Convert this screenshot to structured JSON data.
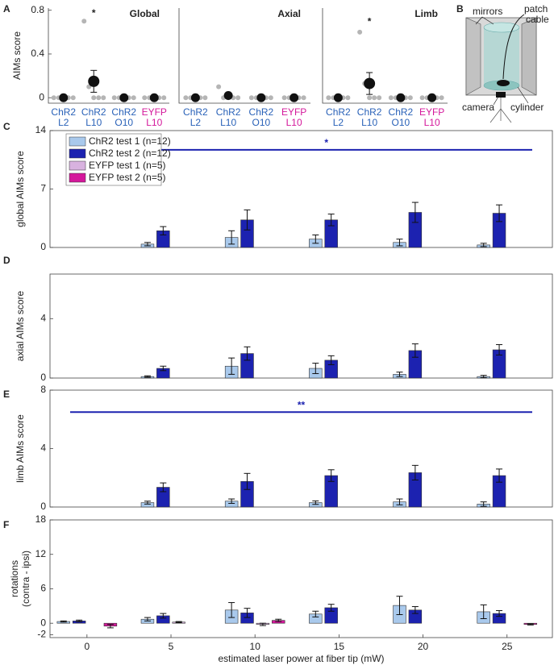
{
  "panel_labels": [
    "A",
    "B",
    "C",
    "D",
    "E",
    "F"
  ],
  "diagram": {
    "labels": {
      "mirrors": "mirrors",
      "patch_cable": [
        "patch",
        "cable"
      ],
      "camera": "camera",
      "cylinder": "cylinder"
    }
  },
  "chart_data": [
    {
      "type": "dot",
      "title": "Global",
      "ylabel": "AIMs score",
      "categories": [
        [
          "ChR2",
          "L2"
        ],
        [
          "ChR2",
          "L10"
        ],
        [
          "ChR2",
          "O10"
        ],
        [
          "EYFP",
          "L10"
        ]
      ],
      "category_colors": [
        "#2a62b8",
        "#2a62b8",
        "#2a62b8",
        "#d4189b"
      ],
      "values": [
        0,
        0.15,
        0,
        0
      ],
      "errors": [
        0,
        0.1,
        0,
        0
      ],
      "points": [
        [
          0,
          0,
          0,
          0,
          0
        ],
        [
          0.7,
          0.1,
          0,
          0,
          0
        ],
        [
          0,
          0,
          0,
          0,
          0
        ],
        [
          0,
          0,
          0,
          0,
          0
        ]
      ],
      "xlim": [
        0.5,
        4.5
      ],
      "ylim": [
        -0.05,
        0.82
      ],
      "yticks": [
        0,
        0.4,
        0.8
      ],
      "annotations": [
        {
          "text": "*",
          "x": 2,
          "y": 0.8
        }
      ]
    },
    {
      "type": "dot",
      "title": "Axial",
      "categories": [
        [
          "ChR2",
          "L2"
        ],
        [
          "ChR2",
          "L10"
        ],
        [
          "ChR2",
          "O10"
        ],
        [
          "EYFP",
          "L10"
        ]
      ],
      "category_colors": [
        "#2a62b8",
        "#2a62b8",
        "#2a62b8",
        "#d4189b"
      ],
      "values": [
        0,
        0.02,
        0,
        0
      ],
      "errors": [
        0,
        0.02,
        0,
        0
      ],
      "points": [
        [
          0,
          0,
          0,
          0,
          0
        ],
        [
          0.1,
          0,
          0,
          0,
          0
        ],
        [
          0,
          0,
          0,
          0,
          0
        ],
        [
          0,
          0,
          0,
          0,
          0
        ]
      ],
      "xlim": [
        0.5,
        4.5
      ],
      "ylim": [
        -0.05,
        0.82
      ]
    },
    {
      "type": "dot",
      "title": "Limb",
      "categories": [
        [
          "ChR2",
          "L2"
        ],
        [
          "ChR2",
          "L10"
        ],
        [
          "ChR2",
          "O10"
        ],
        [
          "EYFP",
          "L10"
        ]
      ],
      "category_colors": [
        "#2a62b8",
        "#2a62b8",
        "#2a62b8",
        "#d4189b"
      ],
      "values": [
        0,
        0.13,
        0,
        0
      ],
      "errors": [
        0,
        0.1,
        0,
        0
      ],
      "points": [
        [
          0,
          0,
          0,
          0,
          0
        ],
        [
          0.6,
          0.13,
          0,
          0,
          0
        ],
        [
          0,
          0,
          0,
          0,
          0
        ],
        [
          0,
          0,
          0,
          0,
          0
        ]
      ],
      "xlim": [
        0.5,
        4.5
      ],
      "ylim": [
        -0.05,
        0.82
      ],
      "annotations": [
        {
          "text": "*",
          "x": 2,
          "y": 0.72
        }
      ]
    },
    {
      "type": "bar",
      "ylabel": "global AIMs score",
      "x": [
        0,
        5,
        10,
        15,
        20,
        25
      ],
      "xlim": [
        -2.2,
        27.7
      ],
      "ylim": [
        0,
        14
      ],
      "yticks": [
        0,
        7,
        14
      ],
      "legend": "upper left",
      "series": [
        {
          "name": "ChR2 test 1 (n=12)",
          "color": "#a9c9ec",
          "values": [
            0,
            0.4,
            1.2,
            1.0,
            0.6,
            0.3
          ],
          "errors": [
            0,
            0.2,
            0.8,
            0.5,
            0.4,
            0.2
          ]
        },
        {
          "name": "ChR2 test 2 (n=12)",
          "color": "#1c22b0",
          "values": [
            0,
            2.0,
            3.3,
            3.3,
            4.2,
            4.1
          ],
          "errors": [
            0,
            0.5,
            1.2,
            0.7,
            1.2,
            1.0
          ]
        },
        {
          "name": "EYFP test 1 (n=5)",
          "color": "#d8b2df",
          "values": [
            0,
            0,
            0,
            0,
            0,
            0
          ],
          "errors": [
            0,
            0,
            0,
            0,
            0,
            0
          ]
        },
        {
          "name": "EYFP test 2 (n=5)",
          "color": "#d4189b",
          "values": [
            0,
            0,
            0,
            0,
            0,
            0
          ],
          "errors": [
            0,
            0,
            0,
            0,
            0,
            0
          ]
        }
      ],
      "significance": {
        "label": "*",
        "x": [
          2,
          26.5
        ],
        "y": 11.7,
        "color": "#1c22b0"
      }
    },
    {
      "type": "bar",
      "ylabel": "axial AIMs score",
      "x": [
        0,
        5,
        10,
        15,
        20,
        25
      ],
      "xlim": [
        -2.2,
        27.7
      ],
      "ylim": [
        0,
        7
      ],
      "yticks": [
        0,
        4
      ],
      "series": [
        {
          "name": "ChR2 test 1 (n=12)",
          "color": "#a9c9ec",
          "values": [
            0,
            0.1,
            0.8,
            0.65,
            0.25,
            0.1
          ],
          "errors": [
            0,
            0.05,
            0.55,
            0.35,
            0.15,
            0.08
          ]
        },
        {
          "name": "ChR2 test 2 (n=12)",
          "color": "#1c22b0",
          "values": [
            0,
            0.65,
            1.65,
            1.2,
            1.85,
            1.9
          ],
          "errors": [
            0,
            0.15,
            0.45,
            0.3,
            0.45,
            0.35
          ]
        },
        {
          "name": "EYFP test 1 (n=5)",
          "color": "#d8b2df",
          "values": [
            0,
            0,
            0,
            0,
            0,
            0
          ],
          "errors": [
            0,
            0,
            0,
            0,
            0,
            0
          ]
        },
        {
          "name": "EYFP test 2 (n=5)",
          "color": "#d4189b",
          "values": [
            0,
            0,
            0,
            0,
            0,
            0
          ],
          "errors": [
            0,
            0,
            0,
            0,
            0,
            0
          ]
        }
      ]
    },
    {
      "type": "bar",
      "ylabel": "limb AIMs score",
      "x": [
        0,
        5,
        10,
        15,
        20,
        25
      ],
      "xlim": [
        -2.2,
        27.7
      ],
      "ylim": [
        0,
        8
      ],
      "yticks": [
        0,
        4,
        8
      ],
      "series": [
        {
          "name": "ChR2 test 1 (n=12)",
          "color": "#a9c9ec",
          "values": [
            0,
            0.3,
            0.4,
            0.3,
            0.35,
            0.2
          ],
          "errors": [
            0,
            0.1,
            0.15,
            0.12,
            0.2,
            0.15
          ]
        },
        {
          "name": "ChR2 test 2 (n=12)",
          "color": "#1c22b0",
          "values": [
            0,
            1.35,
            1.75,
            2.15,
            2.35,
            2.15
          ],
          "errors": [
            0,
            0.3,
            0.55,
            0.4,
            0.5,
            0.45
          ]
        },
        {
          "name": "EYFP test 1 (n=5)",
          "color": "#d8b2df",
          "values": [
            0,
            0,
            0,
            0,
            0,
            0
          ],
          "errors": [
            0,
            0,
            0,
            0,
            0,
            0
          ]
        },
        {
          "name": "EYFP test 2 (n=5)",
          "color": "#d4189b",
          "values": [
            0,
            0,
            0,
            0,
            0,
            0
          ],
          "errors": [
            0,
            0,
            0,
            0,
            0,
            0
          ]
        }
      ],
      "significance": {
        "label": "**",
        "x": [
          -1,
          26.5
        ],
        "y": 6.5,
        "color": "#1c22b0"
      }
    },
    {
      "type": "bar",
      "ylabel": [
        "rotations",
        "(contra - ipsi)"
      ],
      "xlabel": "estimated laser power at fiber tip (mW)",
      "x": [
        0,
        5,
        10,
        15,
        20,
        25
      ],
      "xlim": [
        -2.2,
        27.7
      ],
      "xticks": [
        0,
        5,
        10,
        15,
        20,
        25
      ],
      "ylim": [
        -2.5,
        18
      ],
      "yticks": [
        -2,
        0,
        6,
        12,
        18
      ],
      "series": [
        {
          "name": "ChR2 test 1 (n=12)",
          "color": "#a9c9ec",
          "values": [
            0.3,
            0.7,
            2.3,
            1.6,
            3.1,
            2.0
          ],
          "errors": [
            0.1,
            0.3,
            1.3,
            0.5,
            1.6,
            1.2
          ]
        },
        {
          "name": "ChR2 test 2 (n=12)",
          "color": "#1c22b0",
          "values": [
            0.4,
            1.3,
            1.8,
            2.7,
            2.3,
            1.7
          ],
          "errors": [
            0.15,
            0.4,
            0.8,
            0.6,
            0.6,
            0.5
          ]
        },
        {
          "name": "EYFP test 1 (n=5)",
          "color": "#d8b2df",
          "values": [
            0,
            0.2,
            -0.2,
            0,
            0,
            0
          ],
          "errors": [
            0,
            0.1,
            0.2,
            0,
            0,
            0
          ]
        },
        {
          "name": "EYFP test 2 (n=5)",
          "color": "#d4189b",
          "values": [
            -0.5,
            0,
            0.5,
            0,
            0,
            -0.2
          ],
          "errors": [
            0.3,
            0,
            0.2,
            0,
            0,
            0.1
          ]
        }
      ]
    }
  ]
}
